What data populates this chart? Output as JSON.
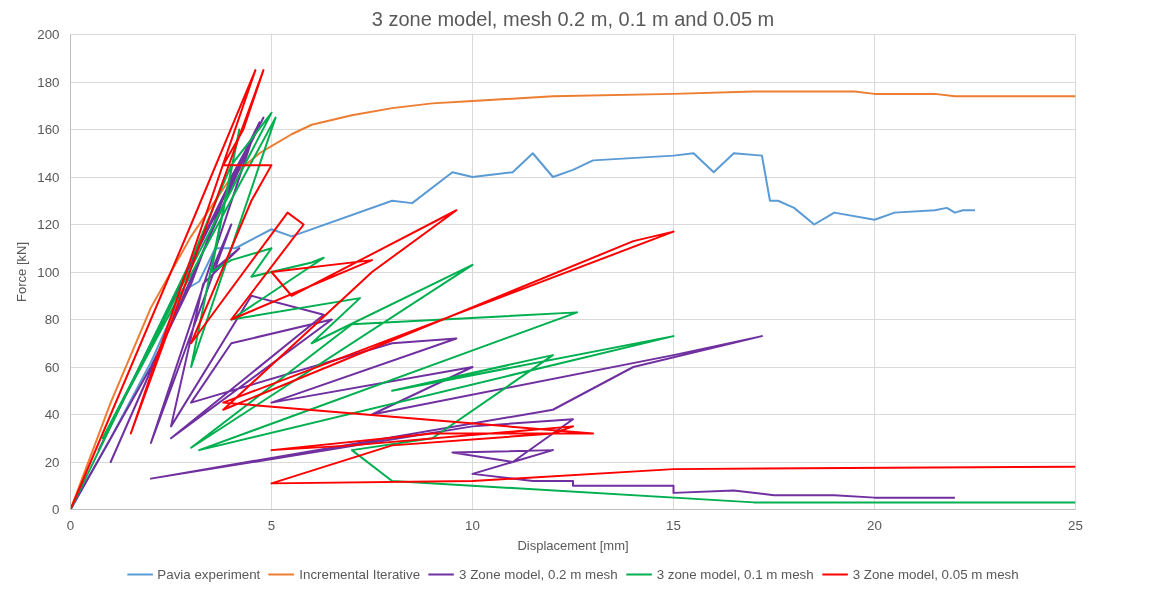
{
  "chart_data": {
    "type": "line",
    "title": "3 zone model, mesh 0.2 m, 0.1 m and 0.05 m",
    "xlabel": "Displacement [mm]",
    "ylabel": "Force [kN]",
    "xlim": [
      0,
      25
    ],
    "ylim": [
      0,
      200
    ],
    "xticks": [
      0,
      5,
      10,
      15,
      20,
      25
    ],
    "yticks": [
      0,
      20,
      40,
      60,
      80,
      100,
      120,
      140,
      160,
      180,
      200
    ],
    "grid": true,
    "legend": "bottom",
    "marker": "none",
    "line_style": "solid",
    "series": [
      {
        "name": "Pavia experiment",
        "color": "#5b9bd5",
        "x": [
          0,
          1,
          2,
          2.8,
          3.2,
          3.6,
          4.1,
          5,
          5.5,
          8,
          8.5,
          9.5,
          10,
          11,
          11.5,
          12,
          12.5,
          13,
          15,
          15.5,
          16,
          16.5,
          17.2,
          17.4,
          17.6,
          18,
          18.5,
          19,
          20,
          20.5,
          21.5,
          21.8,
          22,
          22.2,
          22.5
        ],
        "values": [
          0,
          30,
          62,
          92,
          96,
          110,
          110,
          118,
          115,
          130,
          129,
          142,
          140,
          142,
          150,
          140,
          143,
          147,
          149,
          150,
          142,
          150,
          149,
          130,
          130,
          127,
          120,
          125,
          122,
          125,
          126,
          127,
          125,
          126,
          126
        ]
      },
      {
        "name": "Incremental Iterative",
        "color": "#ed7d31",
        "x": [
          0,
          1,
          2,
          3,
          4,
          4.7,
          5,
          5.5,
          6,
          7,
          8,
          9,
          10,
          12,
          15,
          17,
          19.5,
          20,
          21.5,
          22,
          23,
          25
        ],
        "values": [
          0,
          45,
          85,
          115,
          140,
          150,
          153,
          158,
          162,
          166,
          169,
          171,
          172,
          174,
          175,
          176,
          176,
          175,
          175,
          174,
          174,
          174
        ]
      },
      {
        "name": "3 Zone model, 0.2 m mesh",
        "color": "#7030a0",
        "x": [
          0,
          1,
          2,
          3,
          4,
          4.8,
          0.7,
          4.7,
          1,
          4.5,
          2,
          4,
          3.5,
          4.2,
          3.3,
          2.5,
          4.5,
          6.3,
          2.5,
          6.5,
          4,
          3,
          8,
          9.6,
          5,
          10,
          7.5,
          15,
          17.2,
          14,
          12,
          2,
          10,
          12.5,
          11,
          9.5,
          12,
          10,
          11.5,
          12.5,
          12.5,
          15,
          15,
          16.5,
          17.5,
          19,
          20,
          22
        ],
        "values": [
          0,
          30,
          60,
          95,
          140,
          165,
          25,
          163,
          20,
          155,
          28,
          120,
          100,
          110,
          95,
          35,
          90,
          82,
          30,
          80,
          70,
          45,
          70,
          72,
          45,
          60,
          40,
          65,
          73,
          60,
          42,
          13,
          35,
          38,
          20,
          24,
          25,
          15,
          12,
          12,
          10,
          10,
          7,
          8,
          6,
          6,
          5,
          5
        ]
      },
      {
        "name": "3 zone model, 0.1 m mesh",
        "color": "#00b050",
        "x": [
          0,
          1,
          2,
          3,
          4,
          5,
          0.8,
          5.1,
          3,
          4.2,
          3.5,
          4,
          5,
          4.5,
          6,
          6.3,
          4,
          7.2,
          6,
          10,
          3,
          7,
          12.6,
          3.2,
          15,
          8,
          12,
          9,
          7,
          8,
          17,
          25
        ],
        "values": [
          0,
          35,
          70,
          105,
          145,
          167,
          30,
          165,
          60,
          160,
          100,
          105,
          110,
          98,
          104,
          106,
          80,
          89,
          70,
          103,
          26,
          78,
          83,
          25,
          73,
          50,
          65,
          30,
          25,
          12,
          3,
          3
        ]
      },
      {
        "name": "3 Zone model, 0.05 m mesh",
        "color": "#ff0000",
        "x": [
          0,
          1,
          2,
          3,
          4.6,
          1.5,
          4.8,
          4.3,
          3.8,
          5,
          4.5,
          3,
          5.4,
          5.8,
          4,
          7.5,
          5,
          5.5,
          9.6,
          7.5,
          3.8,
          14,
          15,
          3.8,
          13,
          9,
          5,
          7,
          12.5,
          12,
          8,
          5,
          10,
          15,
          25
        ],
        "values": [
          0,
          40,
          80,
          120,
          185,
          32,
          185,
          160,
          145,
          145,
          130,
          70,
          125,
          120,
          80,
          105,
          100,
          90,
          126,
          100,
          42,
          113,
          117,
          45,
          32,
          32,
          25,
          27,
          35,
          32,
          27,
          11,
          12,
          17,
          18
        ]
      }
    ]
  }
}
